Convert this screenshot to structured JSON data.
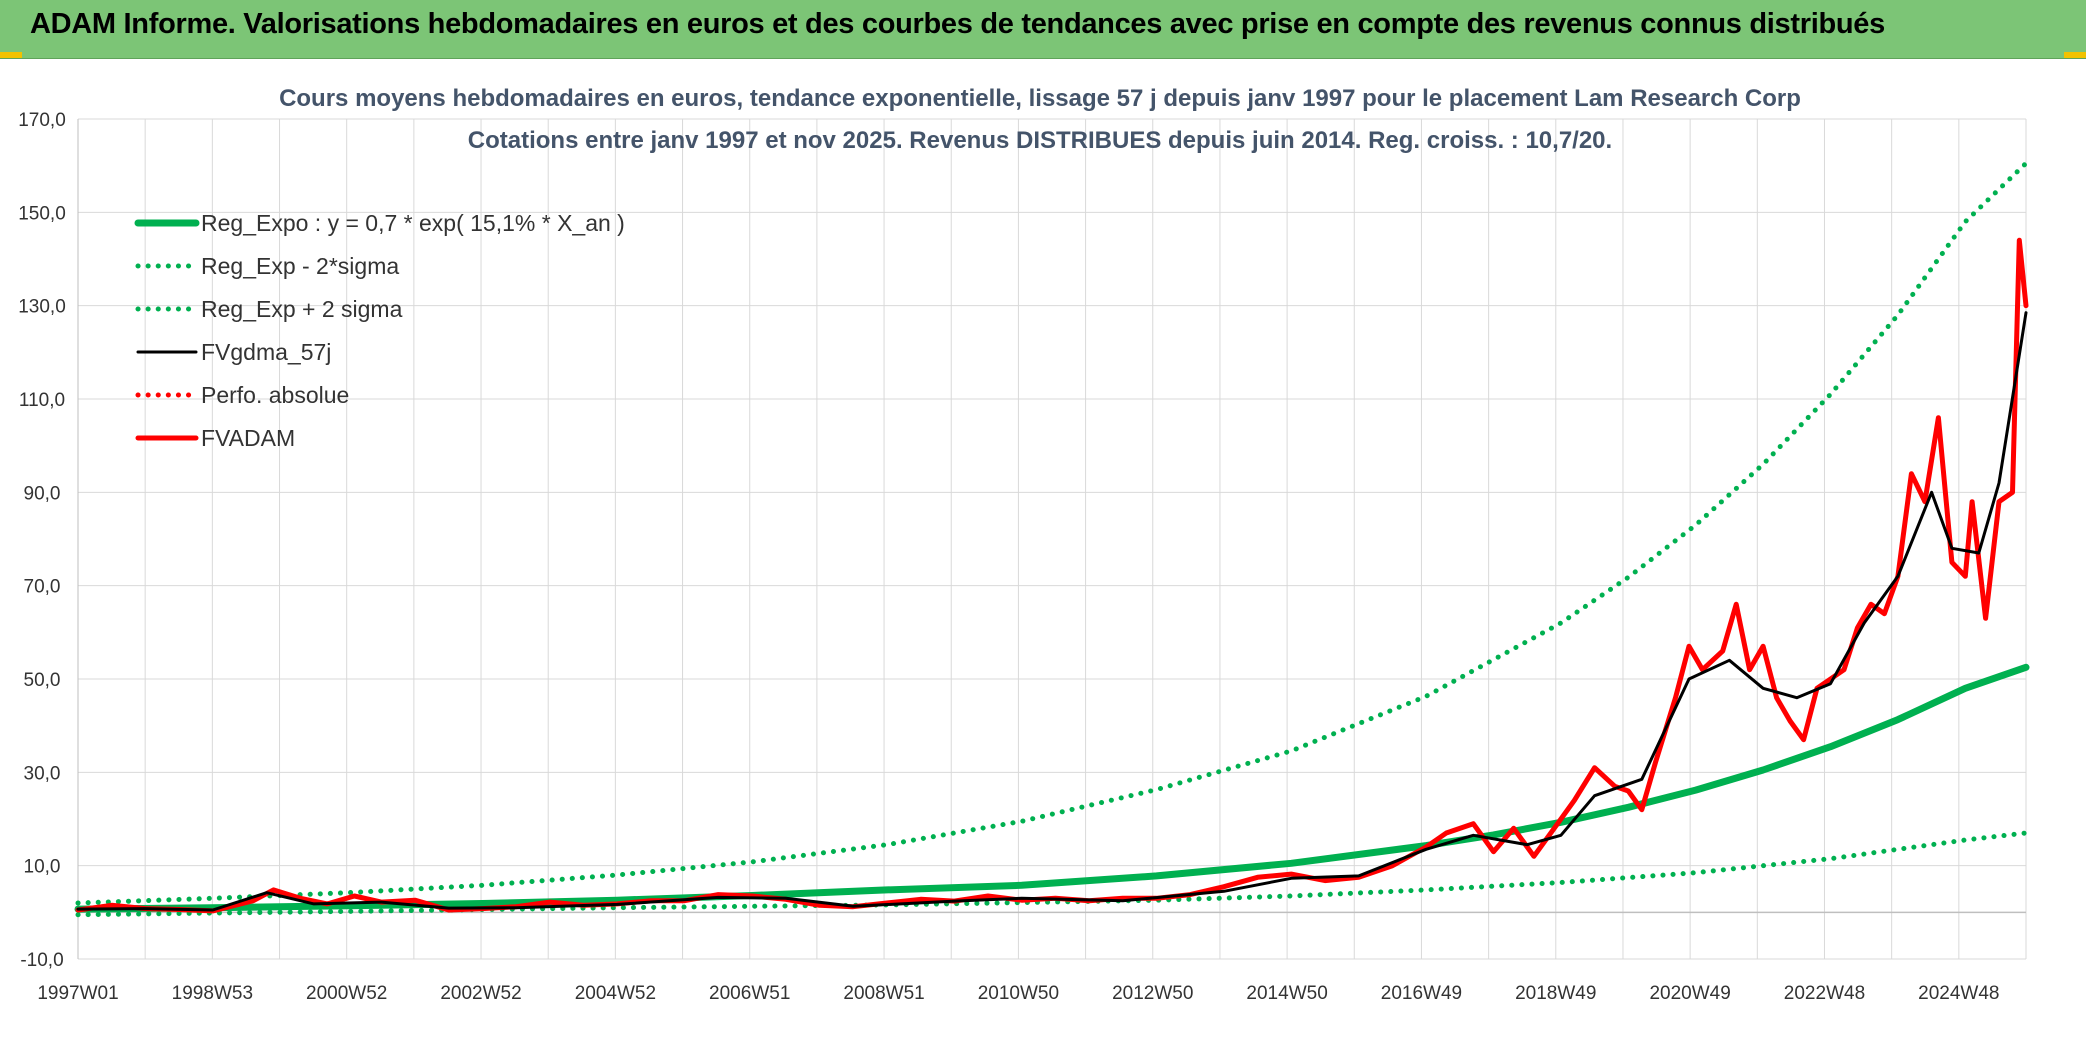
{
  "header": {
    "title": "ADAM Informe. Valorisations hebdomadaires en euros et des courbes de tendances avec prise en compte des revenus connus distribués"
  },
  "colors": {
    "banner": "#7cc576",
    "reg_expo": "#00b050",
    "fvgdma": "#000000",
    "fvadam": "#ff0000",
    "grid": "#d9d9d9"
  },
  "chart_data": {
    "type": "line",
    "title": "Cours moyens hebdomadaires en euros, tendance exponentielle, lissage 57 j depuis janv 1997 pour le placement Lam Research Corp",
    "subtitle": "Cotations entre janv 1997 et nov 2025. Revenus DISTRIBUES depuis juin 2014. Reg. croiss. : 10,7/20.",
    "xlabel": "",
    "ylabel": "",
    "ylim": [
      -10,
      170
    ],
    "yticks": [
      "-10,0",
      "10,0",
      "30,0",
      "50,0",
      "70,0",
      "90,0",
      "110,0",
      "130,0",
      "150,0",
      "170,0"
    ],
    "xticks": [
      "1997W01",
      "1998W53",
      "2000W52",
      "2002W52",
      "2004W52",
      "2006W51",
      "2008W51",
      "2010W50",
      "2012W50",
      "2014W50",
      "2016W49",
      "2018W49",
      "2020W49",
      "2022W48",
      "2024W48"
    ],
    "x_range": [
      1997.0,
      2025.9
    ],
    "grid": true,
    "legend_position": "top-left",
    "series": [
      {
        "name": "Reg_Expo : y = 0,7 * exp( 15,1% *  X_an )",
        "style": "solid-thick",
        "color": "#00b050",
        "x": [
          1997,
          1999,
          2001,
          2003,
          2005,
          2007,
          2009,
          2011,
          2013,
          2015,
          2017,
          2018,
          2019,
          2020,
          2021,
          2022,
          2023,
          2024,
          2025,
          2025.9
        ],
        "y": [
          0.7,
          1.0,
          1.4,
          1.9,
          2.6,
          3.6,
          4.8,
          5.8,
          7.8,
          10.5,
          14.3,
          16.6,
          19.3,
          22.5,
          26.2,
          30.5,
          35.5,
          41.3,
          48.0,
          52.5
        ]
      },
      {
        "name": "Reg_Exp - 2*sigma",
        "style": "dotted",
        "color": "#00b050",
        "x": [
          1997,
          2001,
          2005,
          2009,
          2013,
          2015,
          2017,
          2019,
          2021,
          2023,
          2025,
          2025.9
        ],
        "y": [
          -0.5,
          0.2,
          1.0,
          1.6,
          2.6,
          3.5,
          4.8,
          6.4,
          8.5,
          11.5,
          15.5,
          17.0
        ]
      },
      {
        "name": "Reg_Exp + 2 sigma",
        "style": "dotted",
        "color": "#00b050",
        "x": [
          1997,
          1999,
          2001,
          2003,
          2005,
          2007,
          2009,
          2011,
          2013,
          2015,
          2017,
          2019,
          2020,
          2021,
          2022,
          2023,
          2024,
          2025,
          2025.9
        ],
        "y": [
          2.0,
          3.0,
          4.2,
          5.8,
          8.0,
          10.8,
          14.5,
          19.5,
          26.3,
          34.6,
          46.3,
          62.0,
          71.8,
          83.0,
          96.0,
          111.0,
          128.0,
          148.0,
          160.5
        ]
      },
      {
        "name": "FVgdma_57j",
        "style": "solid",
        "color": "#000000",
        "x": [
          1997,
          1998,
          1999,
          1999.8,
          2000.5,
          2001.5,
          2002.5,
          2003.5,
          2005,
          2006.5,
          2007.5,
          2008.5,
          2010,
          2011,
          2012.5,
          2014,
          2015,
          2016,
          2017,
          2017.7,
          2018.5,
          2019,
          2019.5,
          2020.2,
          2020.9,
          2021.5,
          2022,
          2022.5,
          2023,
          2023.5,
          2024,
          2024.5,
          2024.8,
          2025.2,
          2025.5,
          2025.9
        ],
        "y": [
          0.7,
          0.8,
          0.5,
          4.2,
          1.8,
          2.2,
          0.9,
          1.0,
          1.7,
          3.2,
          3.0,
          1.3,
          2.4,
          3.0,
          2.5,
          4.5,
          7.3,
          7.8,
          13.5,
          16.5,
          14.5,
          16.5,
          25.0,
          28.5,
          50.0,
          54.0,
          48.0,
          46.0,
          49.0,
          62.0,
          72.0,
          90.0,
          78.0,
          77.0,
          92.0,
          128.5
        ]
      },
      {
        "name": "Perfo. absolue",
        "style": "dotted",
        "color": "#ff0000",
        "x": [
          1997,
          2025.9
        ],
        "y": [
          0.7,
          0.7
        ]
      },
      {
        "name": "FVADAM",
        "style": "solid-thick",
        "color": "#ff0000",
        "x": [
          1997,
          1997.5,
          1998,
          1998.5,
          1999,
          1999.6,
          1999.9,
          2000.3,
          2000.7,
          2001.1,
          2001.5,
          2002,
          2002.5,
          2003,
          2003.5,
          2004,
          2004.5,
          2005,
          2005.5,
          2006,
          2006.5,
          2007,
          2007.5,
          2008,
          2008.5,
          2009,
          2009.5,
          2010,
          2010.5,
          2011,
          2011.5,
          2012,
          2012.5,
          2013,
          2013.5,
          2014,
          2014.5,
          2015,
          2015.5,
          2016,
          2016.5,
          2017,
          2017.3,
          2017.7,
          2018,
          2018.3,
          2018.6,
          2018.9,
          2019.2,
          2019.5,
          2019.8,
          2020,
          2020.2,
          2020.4,
          2020.7,
          2020.9,
          2021.1,
          2021.4,
          2021.6,
          2021.8,
          2022,
          2022.2,
          2022.4,
          2022.6,
          2022.8,
          2023,
          2023.2,
          2023.4,
          2023.6,
          2023.8,
          2024,
          2024.2,
          2024.4,
          2024.6,
          2024.8,
          2025,
          2025.1,
          2025.3,
          2025.5,
          2025.7,
          2025.8,
          2025.9
        ],
        "y": [
          0.5,
          1.5,
          0.8,
          0.6,
          0.3,
          2.5,
          4.8,
          3.0,
          1.8,
          3.5,
          2.2,
          2.6,
          0.5,
          0.8,
          1.2,
          2.2,
          1.5,
          1.8,
          2.5,
          2.5,
          3.8,
          3.5,
          2.8,
          1.5,
          1.2,
          2.0,
          2.8,
          2.4,
          3.5,
          2.6,
          3.0,
          2.5,
          3.0,
          3.0,
          3.8,
          5.5,
          7.5,
          8.2,
          6.8,
          7.5,
          10.0,
          14.0,
          17.0,
          19.0,
          13.0,
          18.0,
          12.0,
          18.0,
          24.0,
          31.0,
          27.0,
          26.0,
          22.0,
          32.0,
          46.0,
          57.0,
          52.0,
          56.0,
          66.0,
          52.0,
          57.0,
          46.0,
          41.0,
          37.0,
          48.0,
          50.0,
          52.0,
          61.0,
          66.0,
          64.0,
          72.0,
          94.0,
          88.0,
          106.0,
          75.0,
          72.0,
          88.0,
          63.0,
          88.0,
          90.0,
          144.0,
          130.0
        ]
      }
    ]
  }
}
